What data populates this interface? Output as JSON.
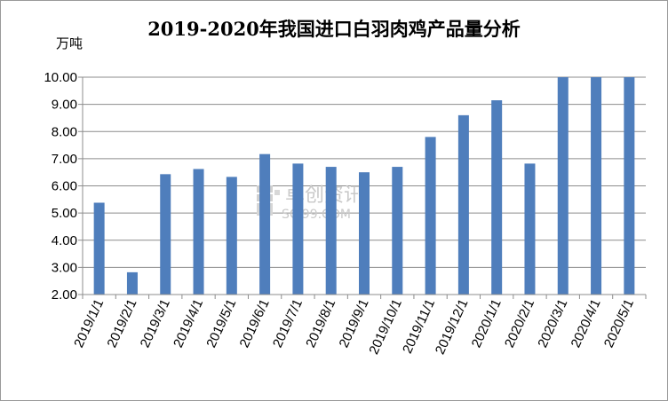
{
  "chart_data": {
    "type": "bar",
    "title": "2019-2020年我国进口白羽肉鸡产品量分析",
    "unit_label": "万吨",
    "ylim": [
      2.0,
      10.0
    ],
    "yticks": [
      "2.00",
      "3.00",
      "4.00",
      "5.00",
      "6.00",
      "7.00",
      "8.00",
      "9.00",
      "10.00"
    ],
    "categories": [
      "2019/1/1",
      "2019/2/1",
      "2019/3/1",
      "2019/4/1",
      "2019/5/1",
      "2019/6/1",
      "2019/7/1",
      "2019/8/1",
      "2019/9/1",
      "2019/10/1",
      "2019/11/1",
      "2019/12/1",
      "2020/1/1",
      "2020/2/1",
      "2020/3/1",
      "2020/4/1",
      "2020/5/1"
    ],
    "series": [
      {
        "values": [
          5.38,
          2.82,
          6.43,
          6.62,
          6.33,
          7.17,
          6.82,
          6.7,
          6.5,
          6.7,
          7.8,
          8.6,
          9.15,
          6.82,
          10.0,
          10.0,
          10.0
        ],
        "color": "#4f7ebc"
      }
    ],
    "grid": true,
    "legend": "none"
  },
  "watermark": {
    "cn": "卓创资讯",
    "en": "SCI99.COM"
  }
}
